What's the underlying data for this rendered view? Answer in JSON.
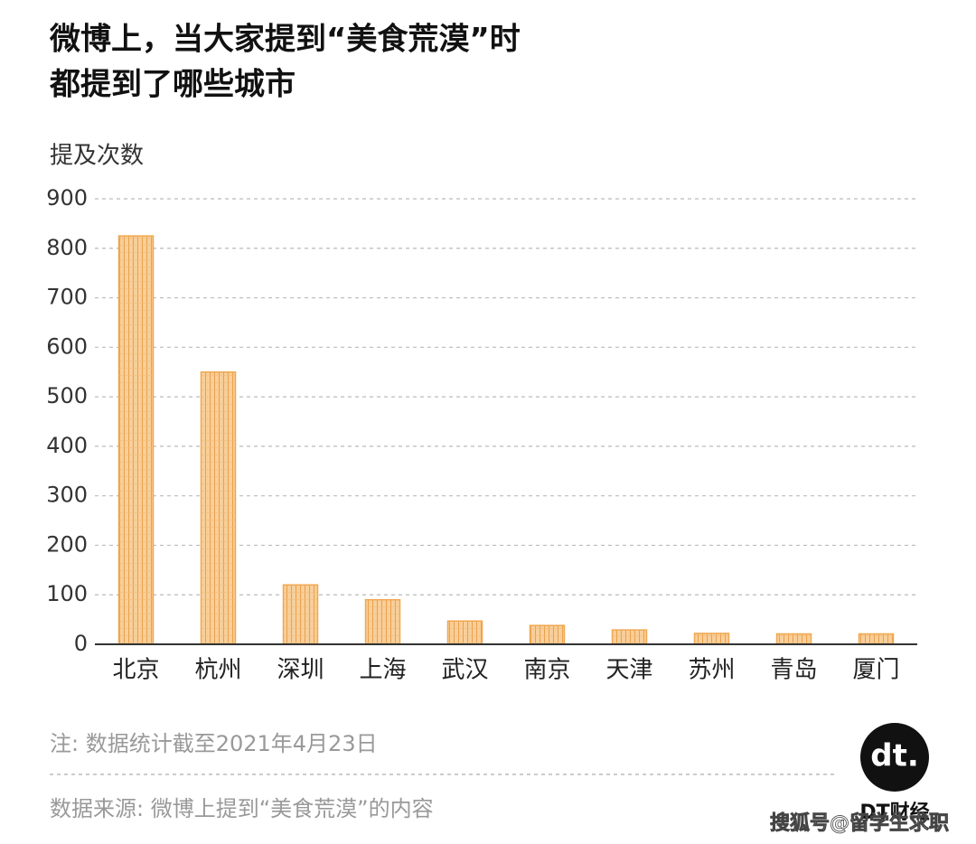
{
  "chart_data": {
    "type": "bar",
    "title": "微博上，当大家提到“美食荒漠”时",
    "subtitle": "都提到了哪些城市",
    "y_label": "提及次数",
    "categories": [
      "北京",
      "杭州",
      "深圳",
      "上海",
      "武汉",
      "南京",
      "天津",
      "苏州",
      "青岛",
      "厦门"
    ],
    "values": [
      825,
      550,
      120,
      90,
      47,
      38,
      29,
      22,
      21,
      21
    ],
    "color": "#f0a850",
    "ylim": [
      0,
      900
    ],
    "yticks": [
      0,
      100,
      200,
      300,
      400,
      500,
      600,
      700,
      800,
      900
    ],
    "grid": true,
    "note": "注: 数据统计截至2021年4月23日",
    "source": "数据来源: 微博上提到“美食荒漠”的内容",
    "logo_mark": "dt.",
    "logo_text": "DT财经",
    "watermark": "搜狐号@留学生求职"
  }
}
